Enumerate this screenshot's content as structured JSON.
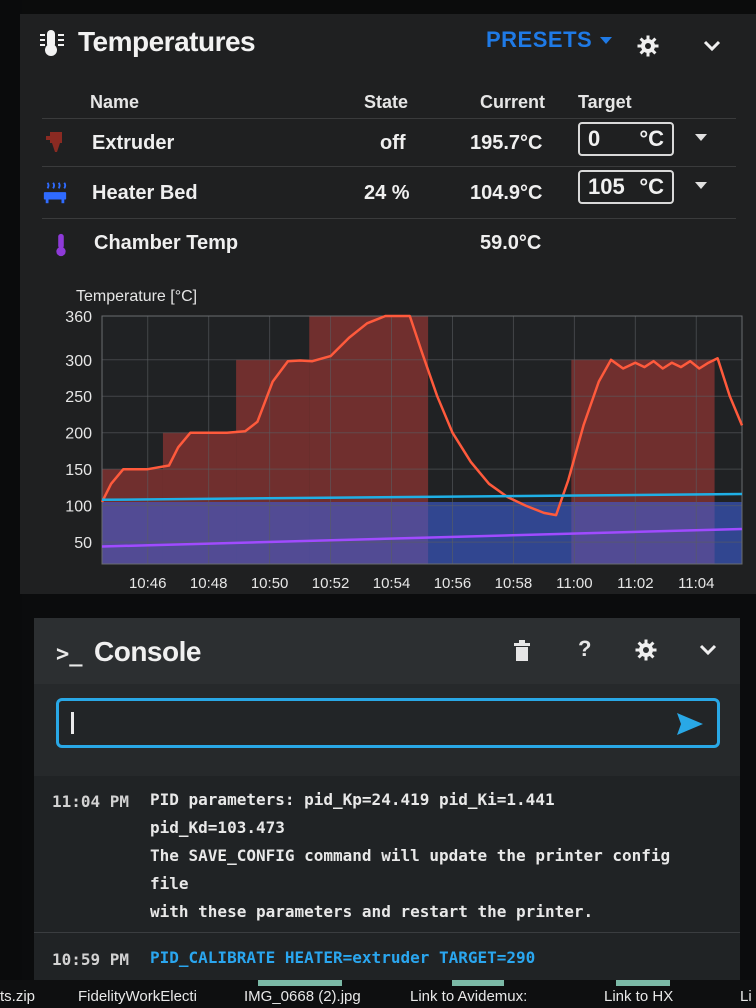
{
  "temperatures": {
    "title": "Temperatures",
    "presets_label": "PRESETS",
    "columns": {
      "name": "Name",
      "state": "State",
      "current": "Current",
      "target": "Target"
    },
    "rows": [
      {
        "name": "Extruder",
        "state": "off",
        "current": "195.7°C",
        "target_value": "0",
        "target_unit": "°C",
        "icon": "extruder-icon",
        "color": "#8a2a22"
      },
      {
        "name": "Heater Bed",
        "state": "24 %",
        "current": "104.9°C",
        "target_value": "105",
        "target_unit": "°C",
        "icon": "heater-bed-icon",
        "color": "#2f6bff"
      },
      {
        "name": "Chamber Temp",
        "state": "",
        "current": "59.0°C",
        "icon": "thermometer-icon",
        "color": "#8e3ad8"
      }
    ]
  },
  "chart_data": {
    "type": "line",
    "title": "Temperature [°C]",
    "xlabel": "",
    "ylabel": "Temperature [°C]",
    "ylim": [
      20,
      360
    ],
    "y_ticks": [
      50,
      100,
      150,
      200,
      250,
      300,
      360
    ],
    "x_ticks": [
      "10:46",
      "10:48",
      "10:50",
      "10:52",
      "10:54",
      "10:56",
      "10:58",
      "11:00",
      "11:02",
      "11:04"
    ],
    "grid": true,
    "series": [
      {
        "color": "#ff5a3c",
        "x": [
          "10:44.5",
          "10:44.8",
          "10:45.2",
          "10:46.0",
          "10:46.7",
          "10:47.0",
          "10:47.4",
          "10:48.0",
          "10:48.6",
          "10:49.2",
          "10:49.6",
          "10:50.1",
          "10:50.6",
          "10:51.0",
          "10:51.4",
          "10:52.0",
          "10:52.6",
          "10:53.2",
          "10:53.8",
          "10:54.3",
          "10:54.6",
          "10:55.0",
          "10:55.5",
          "10:56.0",
          "10:56.6",
          "10:57.2",
          "10:57.8",
          "10:58.4",
          "10:59.0",
          "10:59.4",
          "10:59.8",
          "11:00.3",
          "11:00.8",
          "11:01.2",
          "11:01.6",
          "11:02.0",
          "11:02.3",
          "11:02.6",
          "11:02.9",
          "11:03.2",
          "11:03.5",
          "11:03.8",
          "11:04.1",
          "11:04.4",
          "11:04.7",
          "11:05.1",
          "11:05.5"
        ],
        "values": [
          105,
          130,
          150,
          150,
          155,
          180,
          200,
          200,
          200,
          202,
          215,
          270,
          298,
          299,
          298,
          305,
          330,
          350,
          360,
          360,
          360,
          310,
          250,
          200,
          160,
          130,
          112,
          100,
          90,
          87,
          135,
          210,
          270,
          300,
          288,
          296,
          290,
          298,
          288,
          296,
          290,
          298,
          288,
          296,
          302,
          250,
          210
        ]
      },
      {
        "color": "#1fb0e6",
        "x": [
          "10:44.5",
          "11:05.5"
        ],
        "values": [
          108,
          116
        ]
      },
      {
        "color": "#a04bff",
        "x": [
          "10:44.5",
          "11:05.5"
        ],
        "values": [
          44,
          68
        ]
      }
    ],
    "target_bands": {
      "extruder": {
        "color": "#b23a36",
        "segments": [
          {
            "from": "10:44.5",
            "to": "10:46.5",
            "value": 150
          },
          {
            "from": "10:46.5",
            "to": "10:48.9",
            "value": 200
          },
          {
            "from": "10:48.9",
            "to": "10:51.3",
            "value": 300
          },
          {
            "from": "10:51.3",
            "to": "10:55.2",
            "value": 360
          },
          {
            "from": "10:59.9",
            "to": "11:04.6",
            "value": 300
          }
        ]
      },
      "bed": {
        "color": "#3e5fd8",
        "segments": [
          {
            "from": "10:44.5",
            "to": "11:05.5",
            "value": 105
          }
        ]
      }
    }
  },
  "console": {
    "title": "Console",
    "input_value": "",
    "log": [
      {
        "time": "11:04 PM",
        "message": "PID parameters: pid_Kp=24.419 pid_Ki=1.441\npid_Kd=103.473\nThe SAVE_CONFIG command will update the printer config\nfile\nwith these parameters and restart the printer."
      },
      {
        "time": "10:59 PM",
        "command": "PID_CALIBRATE HEATER=extruder TARGET=290"
      }
    ]
  },
  "taskbar": {
    "items": [
      "ts.zip",
      "FidelityWorkElecti",
      "IMG_0668 (2).jpg",
      "Link to Avidemux:",
      "Link to HX",
      "Li"
    ]
  }
}
